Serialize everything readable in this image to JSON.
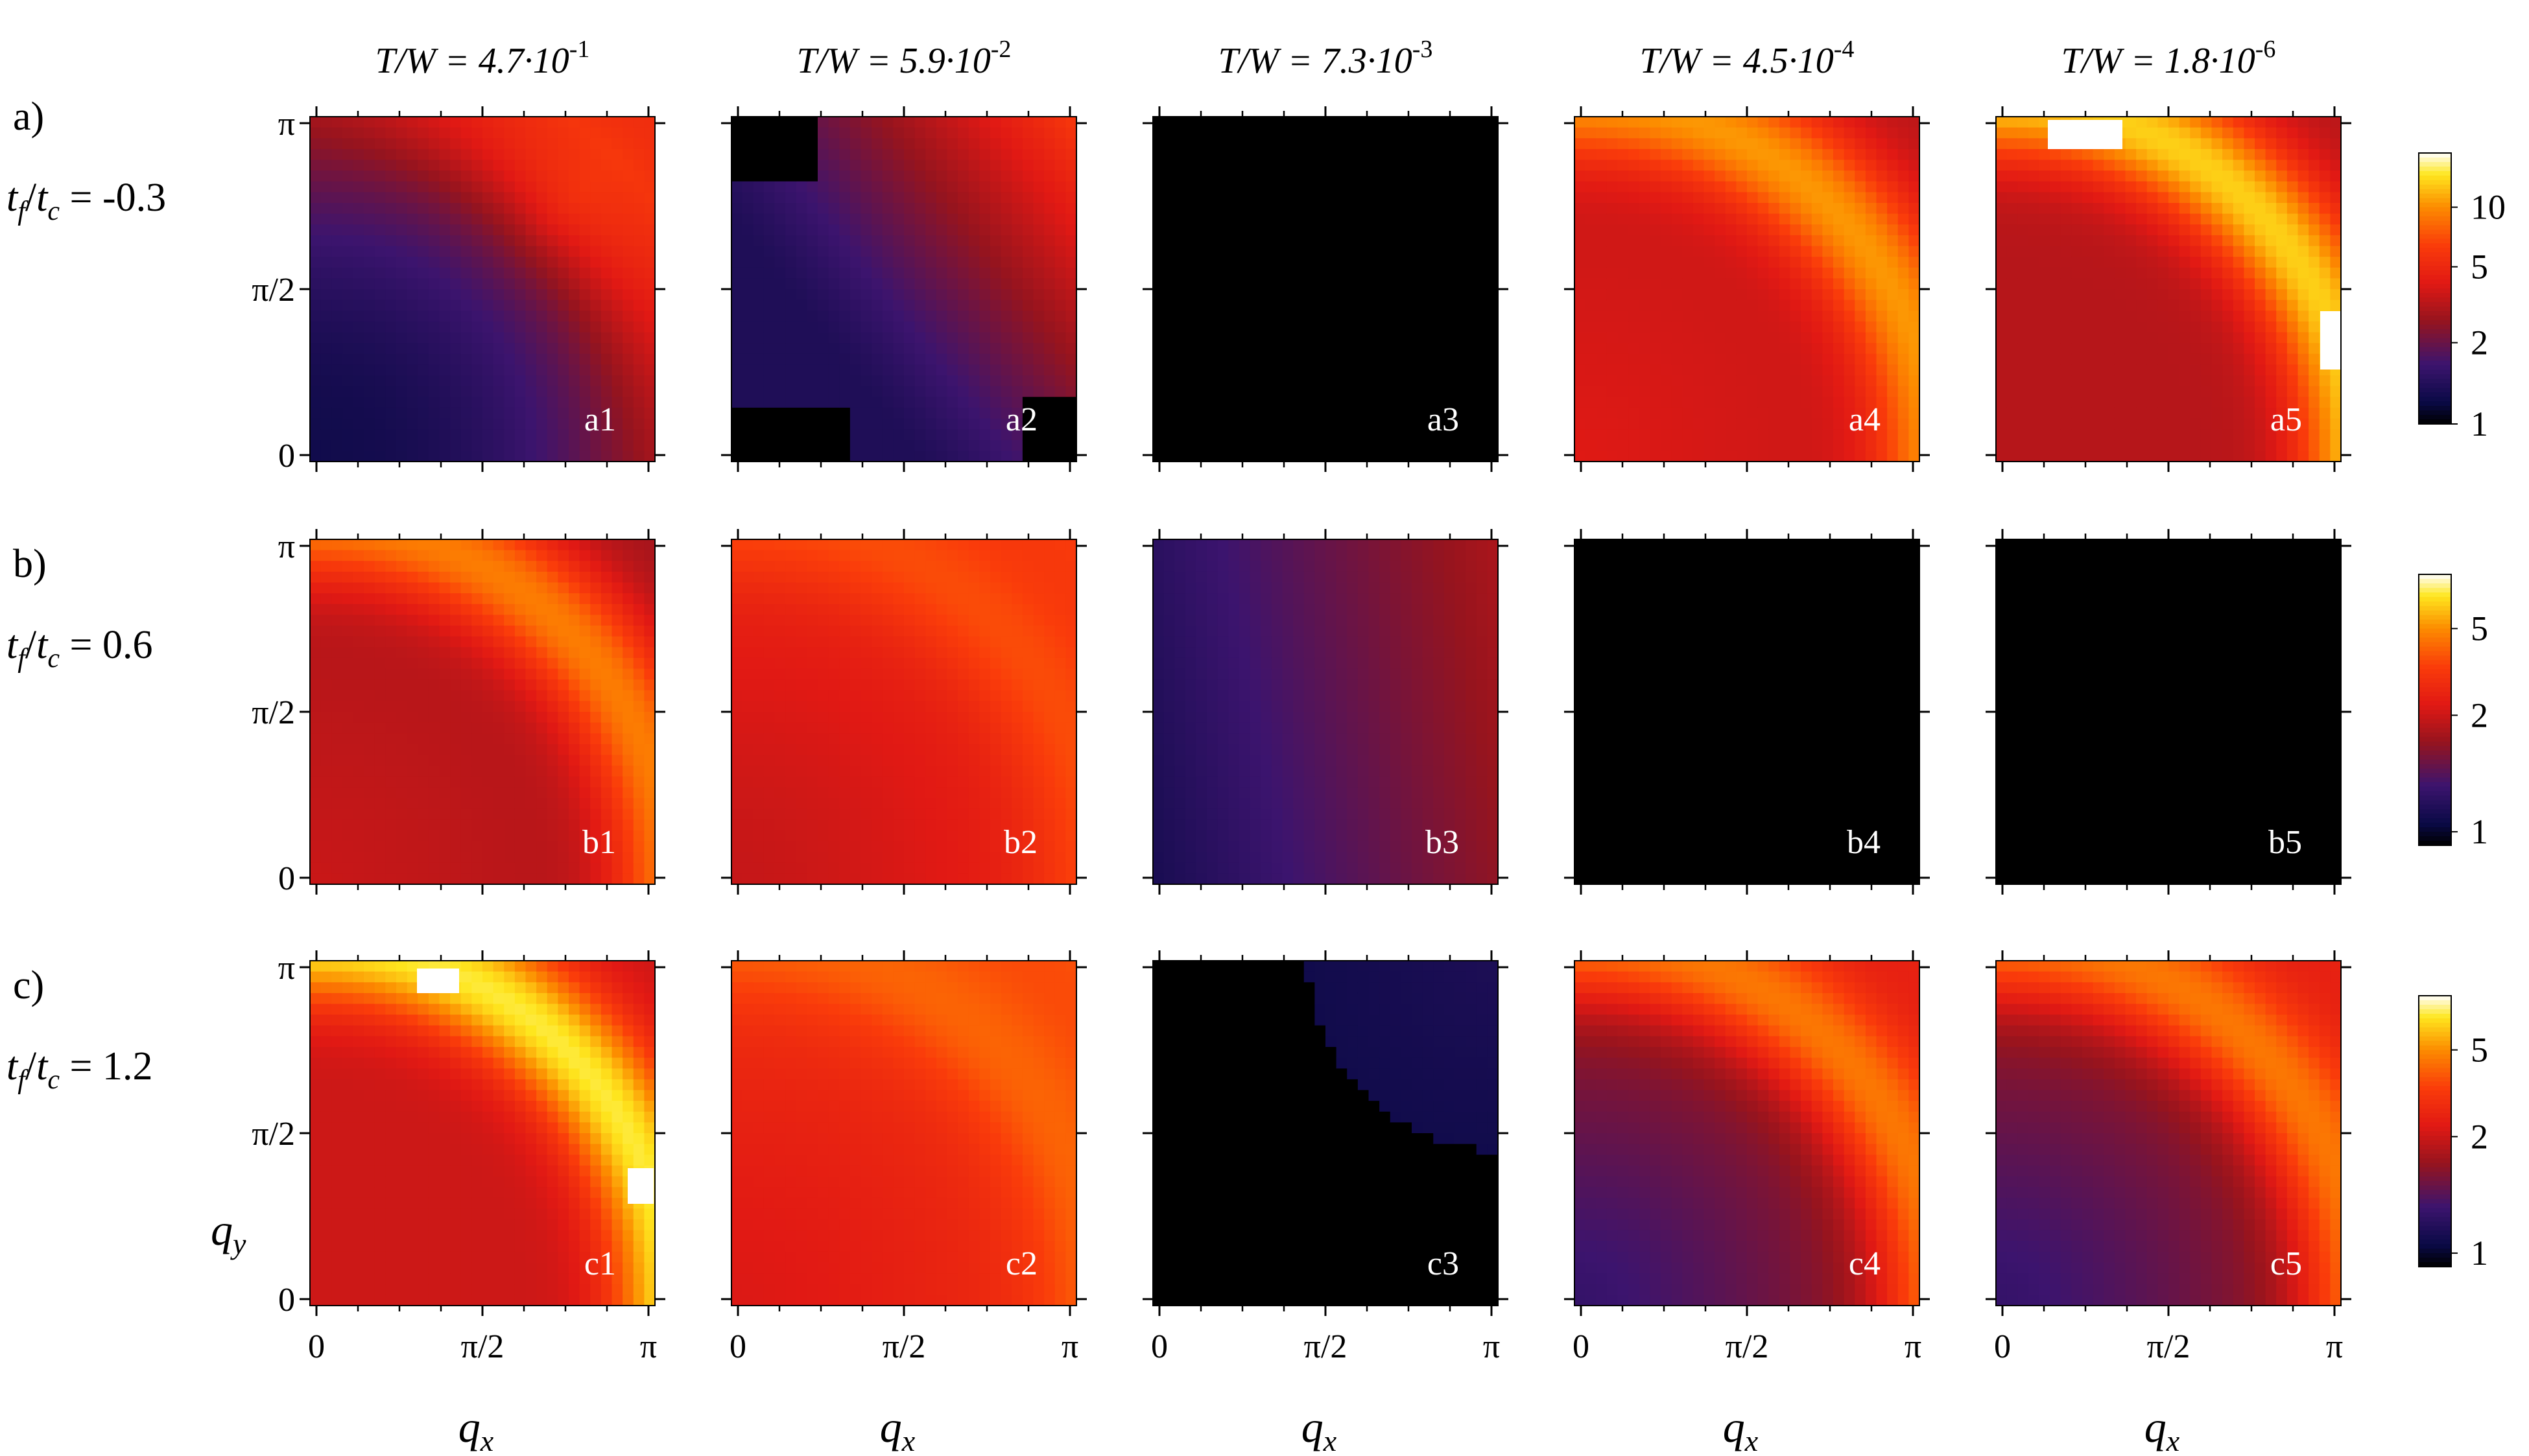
{
  "chart_data": {
    "type": "heatmap",
    "description_grid": "5 columns x 3 rows of momentum-space heatmaps",
    "colormap": "black-blue-red-orange-yellow-white (log scale)",
    "column_titles": [
      {
        "prefix": "T/W = 4.7·10",
        "exp": "-1"
      },
      {
        "prefix": "T/W = 5.9·10",
        "exp": "-2"
      },
      {
        "prefix": "T/W = 7.3·10",
        "exp": "-3"
      },
      {
        "prefix": "T/W = 4.5·10",
        "exp": "-4"
      },
      {
        "prefix": "T/W = 1.8·10",
        "exp": "-6"
      }
    ],
    "rows": [
      {
        "letter": "a)",
        "param_text": "= -0.3",
        "panels": [
          {
            "label": "a1",
            "pattern": "low_center",
            "base": 0.4
          },
          {
            "label": "a2",
            "pattern": "blue_mix",
            "base": 0.2
          },
          {
            "label": "a3",
            "pattern": "black",
            "base": 0
          },
          {
            "label": "a4",
            "pattern": "ring",
            "base": 0.55
          },
          {
            "label": "a5",
            "pattern": "ring_strong",
            "base": 0.55
          }
        ],
        "colorbar": {
          "ticks": [
            "10",
            "5",
            "2",
            "1"
          ],
          "tick_values": [
            0.8,
            0.58,
            0.3,
            0.0
          ]
        }
      },
      {
        "letter": "b)",
        "param_text": "= 0.6",
        "panels": [
          {
            "label": "b1",
            "pattern": "ring",
            "base": 0.5
          },
          {
            "label": "b2",
            "pattern": "smooth_red",
            "base": 0.55
          },
          {
            "label": "b3",
            "pattern": "blue_grad",
            "base": 0.3
          },
          {
            "label": "b4",
            "pattern": "black",
            "base": 0
          },
          {
            "label": "b5",
            "pattern": "black",
            "base": 0
          }
        ],
        "colorbar": {
          "ticks": [
            "5",
            "2",
            "1"
          ],
          "tick_values": [
            0.8,
            0.48,
            0.05
          ]
        }
      },
      {
        "letter": "c)",
        "param_text": "= 1.2",
        "panels": [
          {
            "label": "c1",
            "pattern": "ring_strong",
            "base": 0.6
          },
          {
            "label": "c2",
            "pattern": "smooth_red",
            "base": 0.6
          },
          {
            "label": "c3",
            "pattern": "corner_blue",
            "base": 0
          },
          {
            "label": "c4",
            "pattern": "ring_dark",
            "base": 0.35
          },
          {
            "label": "c5",
            "pattern": "ring_dark",
            "base": 0.3
          }
        ],
        "colorbar": {
          "ticks": [
            "5",
            "2",
            "1"
          ],
          "tick_values": [
            0.8,
            0.48,
            0.05
          ]
        }
      }
    ],
    "x_axis": {
      "label": "q",
      "sub": "x",
      "ticks": [
        "0",
        "π/2",
        "π"
      ],
      "range": [
        0,
        3.1416
      ]
    },
    "y_axis": {
      "label": "q",
      "sub": "y",
      "ticks": [
        "0",
        "π/2",
        "π"
      ],
      "range": [
        0,
        3.1416
      ]
    },
    "param_symbol": {
      "t": "t",
      "f": "f",
      "c": "c"
    }
  }
}
